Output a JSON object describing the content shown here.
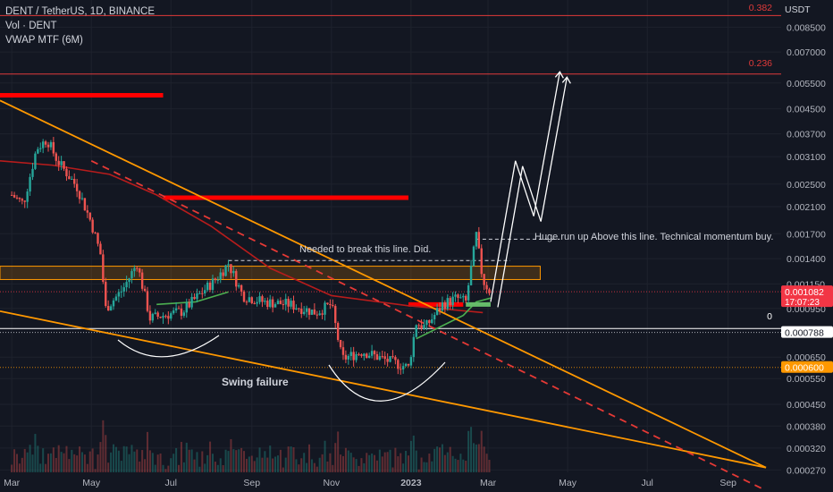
{
  "header": {
    "symbol_line": "DENT / TetherUS, 1D, BINANCE",
    "indicator1": "Vol · DENT",
    "indicator2": "VWAP MTF (6M)"
  },
  "chart_data": {
    "type": "candlestick",
    "yscale": "log",
    "currency_label": "USDT",
    "ylim": [
      0.000265,
      0.0105
    ],
    "y_ticks": [
      "0.008500",
      "0.007000",
      "0.005500",
      "0.004500",
      "0.003700",
      "0.003100",
      "0.002500",
      "0.002100",
      "0.001700",
      "0.001400",
      "0.001150",
      "0.000950",
      "0.000650",
      "0.000550",
      "0.000450",
      "0.000380",
      "0.000320",
      "0.000270"
    ],
    "x_ticks": [
      "Mar",
      "May",
      "Jul",
      "Sep",
      "Nov",
      "2023",
      "Mar",
      "May",
      "Jul",
      "Sep"
    ],
    "price_path": [
      {
        "date": "2022-03-01",
        "price": 0.0023
      },
      {
        "date": "2022-03-10",
        "price": 0.00215
      },
      {
        "date": "2022-03-20",
        "price": 0.0033
      },
      {
        "date": "2022-03-28",
        "price": 0.00355
      },
      {
        "date": "2022-04-05",
        "price": 0.003
      },
      {
        "date": "2022-04-20",
        "price": 0.00245
      },
      {
        "date": "2022-05-01",
        "price": 0.00185
      },
      {
        "date": "2022-05-08",
        "price": 0.00145
      },
      {
        "date": "2022-05-12",
        "price": 0.00095
      },
      {
        "date": "2022-05-25",
        "price": 0.0011
      },
      {
        "date": "2022-06-05",
        "price": 0.00135
      },
      {
        "date": "2022-06-15",
        "price": 0.00088
      },
      {
        "date": "2022-06-25",
        "price": 0.0009
      },
      {
        "date": "2022-07-10",
        "price": 0.00093
      },
      {
        "date": "2022-07-25",
        "price": 0.00108
      },
      {
        "date": "2022-08-05",
        "price": 0.0012
      },
      {
        "date": "2022-08-14",
        "price": 0.00135
      },
      {
        "date": "2022-08-25",
        "price": 0.00105
      },
      {
        "date": "2022-09-10",
        "price": 0.001
      },
      {
        "date": "2022-09-30",
        "price": 0.00098
      },
      {
        "date": "2022-10-20",
        "price": 0.00092
      },
      {
        "date": "2022-11-01",
        "price": 0.00098
      },
      {
        "date": "2022-11-09",
        "price": 0.00064
      },
      {
        "date": "2022-11-25",
        "price": 0.00068
      },
      {
        "date": "2022-12-15",
        "price": 0.00063
      },
      {
        "date": "2022-12-30",
        "price": 0.0006
      },
      {
        "date": "2023-01-05",
        "price": 0.00085
      },
      {
        "date": "2023-01-12",
        "price": 0.00082
      },
      {
        "date": "2023-01-25",
        "price": 0.00098
      },
      {
        "date": "2023-02-05",
        "price": 0.00103
      },
      {
        "date": "2023-02-12",
        "price": 0.001
      },
      {
        "date": "2023-02-20",
        "price": 0.00168
      },
      {
        "date": "2023-02-25",
        "price": 0.00118
      },
      {
        "date": "2023-03-03",
        "price": 0.00108
      }
    ],
    "projection_path": [
      {
        "date": "2023-03-03",
        "price": 0.001
      },
      {
        "date": "2023-03-22",
        "price": 0.003
      },
      {
        "date": "2023-04-05",
        "price": 0.00195
      },
      {
        "date": "2023-04-25",
        "price": 0.006
      }
    ],
    "fib_levels": [
      {
        "label": "0.382",
        "price": 0.0093,
        "color": "#e03a3a"
      },
      {
        "label": "0.236",
        "price": 0.0059,
        "color": "#e03a3a"
      },
      {
        "label": "0",
        "price": 0.000812,
        "color": "#ffffff"
      }
    ],
    "price_badges": [
      {
        "text": "0.001082",
        "time": "17:07:23",
        "price": 0.001082,
        "color": "#f23645"
      },
      {
        "text": "0.000788",
        "price": 0.000788,
        "color": "#ffffff"
      },
      {
        "text": "0.000600",
        "price": 0.0006,
        "color": "#ff9800"
      }
    ],
    "annotations": {
      "break_line": "Needed to break this line. Did.",
      "run_up": "Huge run up Above this line. Technical momentum buy.",
      "swing": "Swing failure"
    },
    "colors": {
      "up": "#26a69a",
      "down": "#ef5350",
      "trend": "#ff9800",
      "resistance": "#ff0000",
      "vwap": "#4caf50"
    }
  }
}
